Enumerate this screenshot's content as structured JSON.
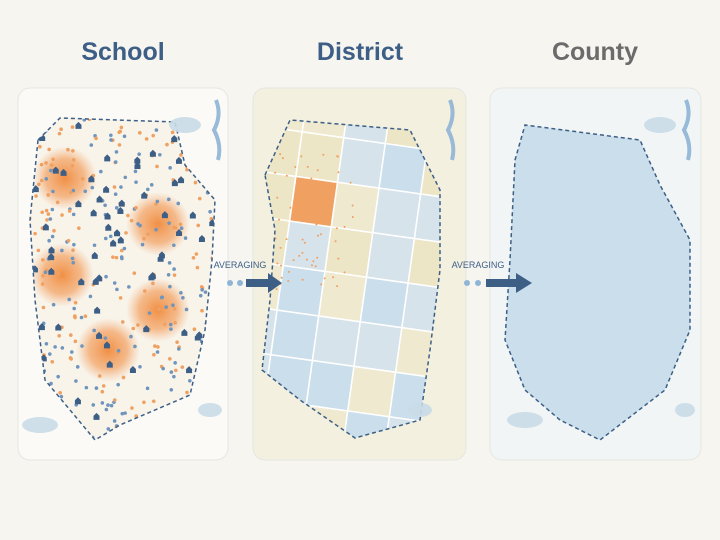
{
  "panels": [
    {
      "title": "School"
    },
    {
      "title": "District"
    },
    {
      "title": "County"
    }
  ],
  "arrows": [
    {
      "label": "AVERAGING"
    },
    {
      "label": "AVERAGING"
    }
  ]
}
